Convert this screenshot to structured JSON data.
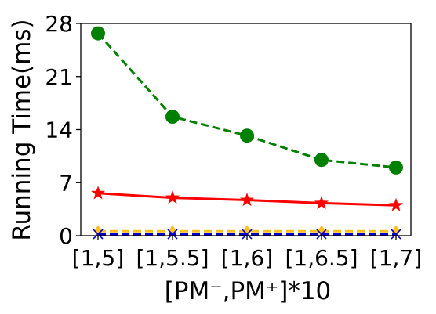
{
  "chart_data": {
    "type": "line",
    "xlabel": "[PM⁻,PM⁺]*10",
    "ylabel": "Running Time(ms)",
    "categories": [
      "[1,5]",
      "[1,5.5]",
      "[1,6]",
      "[1,6.5]",
      "[1,7]"
    ],
    "yticks": [
      "0",
      "7",
      "14",
      "21",
      "28"
    ],
    "ylim": [
      0,
      28
    ],
    "grid": false,
    "series": [
      {
        "color": "#008000",
        "line_style": "dashed",
        "marker": "circle",
        "values": [
          26.7,
          15.7,
          13.2,
          10.0,
          9.0
        ]
      },
      {
        "color": "#ff0000",
        "line_style": "solid",
        "marker": "star",
        "values": [
          5.6,
          5.0,
          4.7,
          4.3,
          4.0
        ]
      },
      {
        "color": "#ffc020",
        "line_style": "dashed",
        "marker": "diamond",
        "values": [
          0.6,
          0.6,
          0.6,
          0.6,
          0.6
        ]
      },
      {
        "color": "#0000cc",
        "line_style": "dashed",
        "marker": "x",
        "values": [
          0.2,
          0.2,
          0.2,
          0.2,
          0.2
        ]
      }
    ]
  }
}
